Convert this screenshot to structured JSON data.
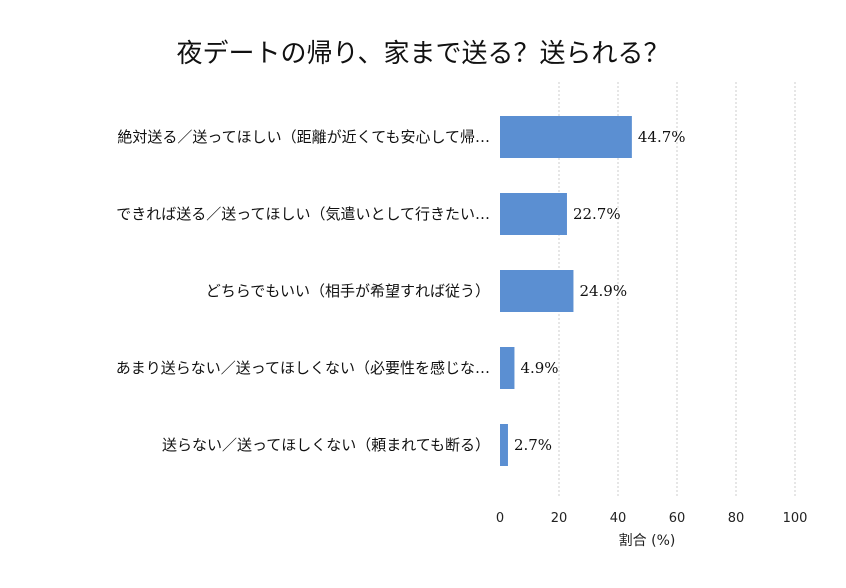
{
  "chart_data": {
    "type": "bar",
    "orientation": "horizontal",
    "title": "夜デートの帰り、家まで送る？送られる？",
    "categories": [
      "絶対送る／送ってほしい（距離が近くても安心して帰…",
      "できれば送る／送ってほしい（気遣いとして行きたい…",
      "どちらでもいい（相手が希望すれば従う）",
      "あまり送らない／送ってほしくない（必要性を感じな…",
      "送らない／送ってほしくない（頼まれても断る）"
    ],
    "values": [
      44.7,
      22.7,
      24.9,
      4.9,
      2.7
    ],
    "value_labels": [
      "44.7%",
      "22.7%",
      "24.9%",
      "4.9%",
      "2.7%"
    ],
    "xlabel": "割合 (%)",
    "ylabel": "",
    "xlim": [
      0,
      100
    ],
    "xticks": [
      0,
      20,
      40,
      60,
      80,
      100
    ],
    "grid": "vertical dashed",
    "colors": {
      "bar": "#5b8fd2"
    }
  }
}
